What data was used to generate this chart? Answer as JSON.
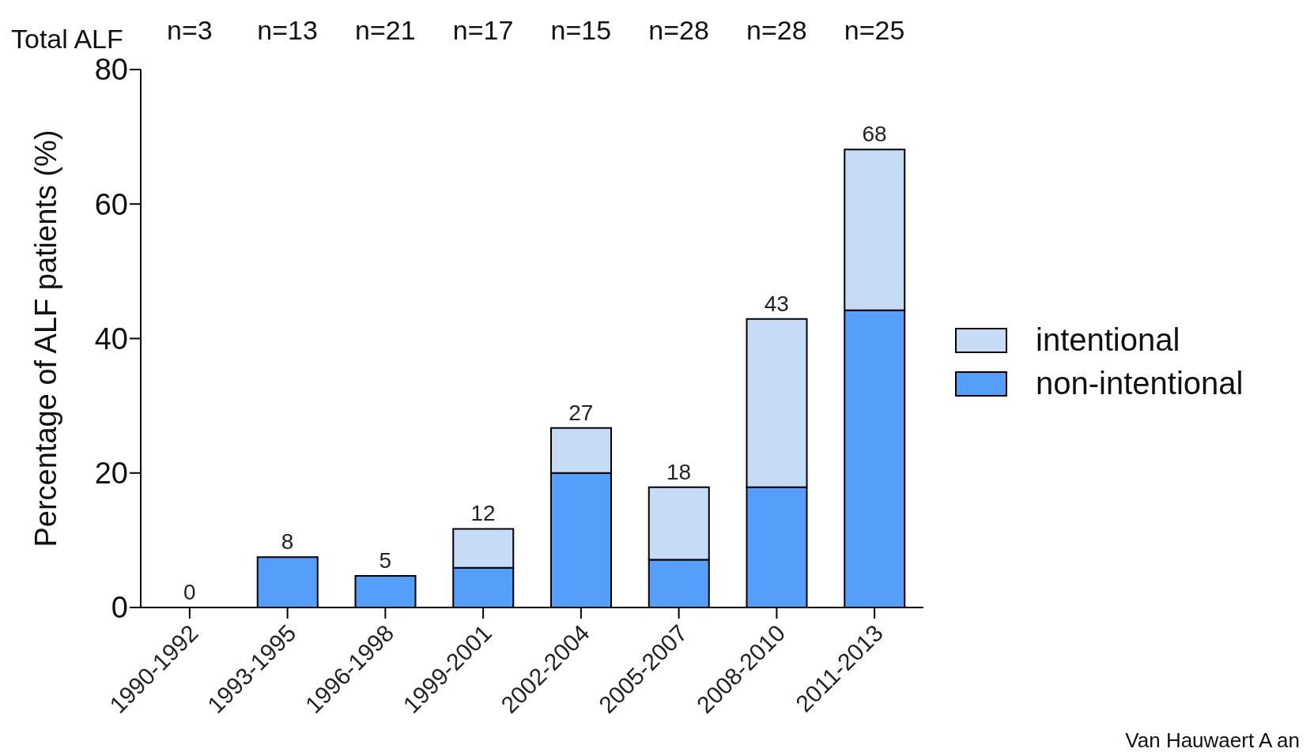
{
  "chart_data": {
    "type": "bar",
    "stacked": true,
    "ylabel": "Percentage of ALF patients (%)",
    "categories": [
      "1990-1992",
      "1993-1995",
      "1996-1998",
      "1999-2001",
      "2002-2004",
      "2005-2007",
      "2008-2010",
      "2011-2013"
    ],
    "series": [
      {
        "name": "non-intentional",
        "color": "#559ef9",
        "values": [
          0,
          7.5,
          4.7,
          5.9,
          20,
          7.1,
          17.9,
          44.2
        ]
      },
      {
        "name": "intentional",
        "color": "#c6dbf5",
        "values": [
          0,
          0,
          0,
          5.8,
          6.7,
          10.8,
          25,
          23.9
        ]
      }
    ],
    "totals": [
      "0",
      "8",
      "5",
      "12",
      "27",
      "18",
      "43",
      "68"
    ],
    "ylim": [
      0,
      80
    ],
    "yticks": [
      0,
      20,
      40,
      60,
      80
    ],
    "grid": false,
    "legend": "right",
    "annotations": [
      "Total ALF",
      "n=3",
      "n=13",
      "n=21",
      "n=17",
      "n=15",
      "n=28",
      "n=28",
      "n=25",
      "Van Hauwaert A an"
    ]
  }
}
